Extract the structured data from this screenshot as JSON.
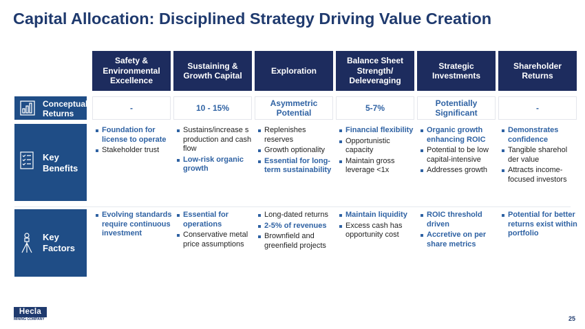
{
  "title": "Capital Allocation: Disciplined Strategy Driving Value Creation",
  "columns": [
    {
      "header": "Safety & Environmental Excellence",
      "returns": "-",
      "benefits": [
        {
          "text": "Foundation for license to operate",
          "bold": true
        },
        {
          "text": "Stakeholder trust",
          "bold": false
        }
      ],
      "factors": [
        {
          "text": "Evolving standards require continuous investment",
          "bold": true
        }
      ]
    },
    {
      "header": "Sustaining & Growth Capital",
      "returns": "10 - 15%",
      "benefits": [
        {
          "text": "Sustains/increase s production and cash flow",
          "bold": false
        },
        {
          "text": "Low-risk organic growth",
          "bold": true
        }
      ],
      "factors": [
        {
          "text": "Essential for operations",
          "bold": true
        },
        {
          "text": "Conservative metal price assumptions",
          "bold": false
        }
      ]
    },
    {
      "header": "Exploration",
      "returns": "Asymmetric Potential",
      "benefits": [
        {
          "text": "Replenishes reserves",
          "bold": false
        },
        {
          "text": "Growth optionality",
          "bold": false
        },
        {
          "text": "Essential for long-term sustainability",
          "bold": true
        }
      ],
      "factors": [
        {
          "text": "Long-dated returns",
          "bold": false
        },
        {
          "text": "2-5% of revenues",
          "bold": true
        },
        {
          "text": "Brownfield and greenfield projects",
          "bold": false
        }
      ]
    },
    {
      "header": "Balance Sheet Strength/ Deleveraging",
      "returns": "5-7%",
      "benefits": [
        {
          "text": "Financial flexibility",
          "bold": true
        },
        {
          "text": "Opportunistic capacity",
          "bold": false
        },
        {
          "text": "Maintain gross leverage <1x",
          "bold": false
        }
      ],
      "factors": [
        {
          "text": "Maintain liquidity",
          "bold": true
        },
        {
          "text": "Excess cash has opportunity cost",
          "bold": false
        }
      ]
    },
    {
      "header": "Strategic Investments",
      "returns": "Potentially Significant",
      "benefits": [
        {
          "text": "Organic growth enhancing ROIC",
          "bold": true
        },
        {
          "text": "Potential to be low capital-intensive",
          "bold": false
        },
        {
          "text": "Addresses growth",
          "bold": false
        }
      ],
      "factors": [
        {
          "text": "ROIC threshold driven",
          "bold": true
        },
        {
          "text": "Accretive on per share metrics",
          "bold": true
        }
      ]
    },
    {
      "header": "Shareholder Returns",
      "returns": "-",
      "benefits": [
        {
          "text": "Demonstrates confidence",
          "bold": true
        },
        {
          "text": "Tangible sharehol der value",
          "bold": false
        },
        {
          "text": "Attracts income-focused investors",
          "bold": false
        }
      ],
      "factors": [
        {
          "text": "Potential for better returns exist within portfolio",
          "bold": true
        }
      ]
    }
  ],
  "row_labels": {
    "returns": "Conceptual Returns",
    "benefits": "Key Benefits",
    "factors": "Key Factors"
  },
  "icons": {
    "returns": "bar-chart-icon",
    "benefits": "checklist-icon",
    "factors": "surveying-tripod-icon"
  },
  "logo": {
    "brand": "Hecla",
    "sub": "MINING COMPANY"
  },
  "page_number": "25",
  "colors": {
    "navy": "#1d2c5e",
    "row_blue": "#1f4d86",
    "accent": "#2f62a3",
    "title": "#1f3a6e"
  }
}
